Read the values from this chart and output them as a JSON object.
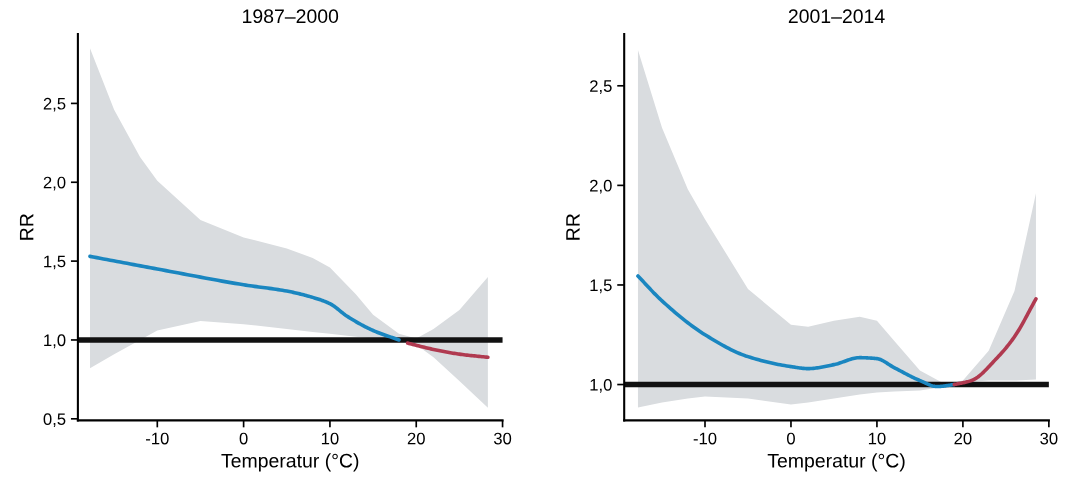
{
  "chart_data": [
    {
      "type": "line",
      "title": "1987–2000",
      "xlabel": "Temperatur (°C)",
      "ylabel": "RR",
      "xlim": [
        -19.2,
        30
      ],
      "xticks": [
        -10,
        0,
        10,
        20,
        30
      ],
      "ylim": [
        0.49,
        2.94
      ],
      "yticks": [
        {
          "value": 0.5,
          "label": "0,5"
        },
        {
          "value": 1.0,
          "label": "1,0"
        },
        {
          "value": 1.5,
          "label": "1,5"
        },
        {
          "value": 2.0,
          "label": "2,0"
        },
        {
          "value": 2.5,
          "label": "2,5"
        }
      ],
      "grid": false,
      "legend": false,
      "marker": "none",
      "line_style": "solid",
      "ref_lines": [
        {
          "axis": "y",
          "value": 1.0,
          "color": "#111111"
        }
      ],
      "series": [
        {
          "type": "area",
          "color": "#d9dcdf",
          "x": [
            -17.8,
            -15,
            -12,
            -10,
            -5,
            0,
            5,
            8,
            10,
            13,
            15,
            18,
            20,
            22,
            25,
            28.3
          ],
          "values": [
            null,
            null,
            null,
            null,
            null,
            null,
            null,
            null,
            null,
            null,
            null,
            null,
            null,
            null,
            null,
            null
          ],
          "lower": [
            0.82,
            0.91,
            1.0,
            1.06,
            1.12,
            1.1,
            1.07,
            1.05,
            1.04,
            1.02,
            1.01,
            1.0,
            0.97,
            0.89,
            0.74,
            0.57
          ],
          "upper": [
            2.85,
            2.46,
            2.16,
            2.01,
            1.76,
            1.65,
            1.58,
            1.52,
            1.46,
            1.29,
            1.16,
            1.04,
            1.01,
            1.07,
            1.19,
            1.4
          ]
        },
        {
          "color": "#1a86c0",
          "x": [
            -17.8,
            -10,
            0,
            5,
            8,
            10,
            12,
            15,
            18
          ],
          "values": [
            1.53,
            1.45,
            1.35,
            1.31,
            1.27,
            1.23,
            1.15,
            1.06,
            1.0
          ]
        },
        {
          "color": "#b03a50",
          "x": [
            19,
            22,
            25,
            28.3
          ],
          "values": [
            0.98,
            0.94,
            0.91,
            0.89
          ]
        }
      ]
    },
    {
      "type": "line",
      "title": "2001–2014",
      "xlabel": "Temperatur (°C)",
      "ylabel": "RR",
      "xlim": [
        -19.4,
        30
      ],
      "xticks": [
        -10,
        0,
        10,
        20,
        30
      ],
      "ylim": [
        0.82,
        2.76
      ],
      "yticks": [
        {
          "value": 1.0,
          "label": "1,0"
        },
        {
          "value": 1.5,
          "label": "1,5"
        },
        {
          "value": 2.0,
          "label": "2,0"
        },
        {
          "value": 2.5,
          "label": "2,5"
        }
      ],
      "grid": false,
      "legend": false,
      "marker": "none",
      "line_style": "solid",
      "ref_lines": [
        {
          "axis": "y",
          "value": 1.0,
          "color": "#111111"
        }
      ],
      "series": [
        {
          "type": "area",
          "color": "#d9dcdf",
          "x": [
            -17.8,
            -15,
            -12,
            -10,
            -5,
            0,
            2,
            5,
            8,
            10,
            12,
            15,
            18,
            20,
            23,
            26,
            28.5
          ],
          "values": [
            null,
            null,
            null,
            null,
            null,
            null,
            null,
            null,
            null,
            null,
            null,
            null,
            null,
            null,
            null,
            null,
            null
          ],
          "lower": [
            0.885,
            0.91,
            0.93,
            0.94,
            0.93,
            0.9,
            0.91,
            0.93,
            0.95,
            0.96,
            0.965,
            0.97,
            0.99,
            1.01,
            1.02,
            1.02,
            1.025
          ],
          "upper": [
            2.68,
            2.29,
            1.98,
            1.83,
            1.48,
            1.3,
            1.29,
            1.32,
            1.34,
            1.32,
            1.22,
            1.07,
            1.0,
            1.02,
            1.17,
            1.47,
            1.96
          ]
        },
        {
          "color": "#1a86c0",
          "x": [
            -17.8,
            -15,
            -10,
            -5,
            0,
            2,
            5,
            8,
            10,
            12,
            15,
            17,
            19
          ],
          "values": [
            1.545,
            1.42,
            1.25,
            1.14,
            1.09,
            1.08,
            1.1,
            1.135,
            1.13,
            1.085,
            1.02,
            0.99,
            1.0
          ]
        },
        {
          "color": "#b03a50",
          "x": [
            19,
            21,
            24,
            26,
            28.5
          ],
          "values": [
            1.0,
            1.02,
            1.135,
            1.24,
            1.43
          ]
        }
      ]
    }
  ]
}
